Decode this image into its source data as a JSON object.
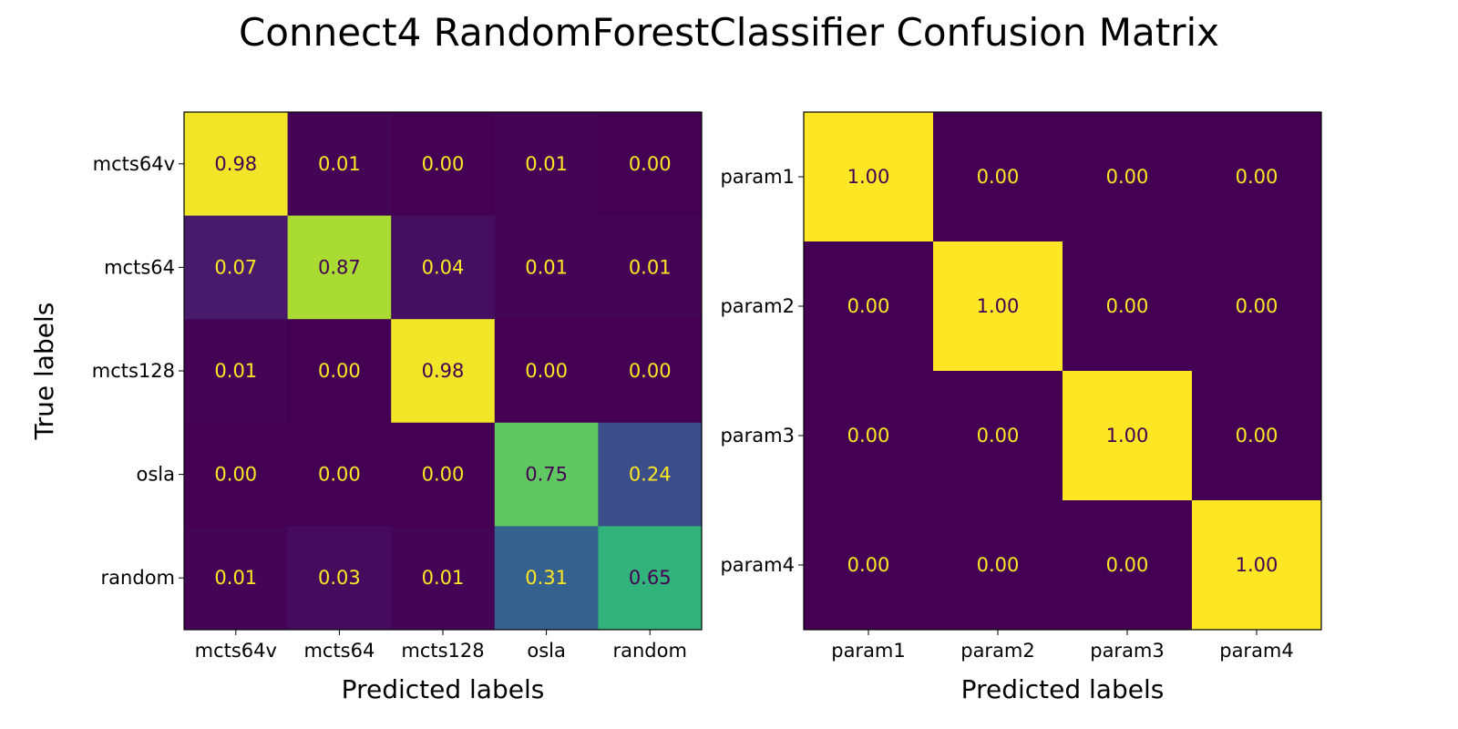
{
  "figure": {
    "title": "Connect4 RandomForestClassifier Confusion Matrix",
    "ylabel": "True labels"
  },
  "chart_data": [
    {
      "type": "heatmap",
      "title": "",
      "xlabel": "Predicted labels",
      "ylabel": "True labels",
      "x_categories": [
        "mcts64v",
        "mcts64",
        "mcts128",
        "osla",
        "random"
      ],
      "y_categories": [
        "mcts64v",
        "mcts64",
        "mcts128",
        "osla",
        "random"
      ],
      "values": [
        [
          0.98,
          0.01,
          0.0,
          0.01,
          0.0
        ],
        [
          0.07,
          0.87,
          0.04,
          0.01,
          0.01
        ],
        [
          0.01,
          0.0,
          0.98,
          0.0,
          0.0
        ],
        [
          0.0,
          0.0,
          0.0,
          0.75,
          0.24
        ],
        [
          0.01,
          0.03,
          0.01,
          0.31,
          0.65
        ]
      ],
      "colormap": "viridis",
      "value_range": [
        0,
        1
      ],
      "number_format": "2 decimals"
    },
    {
      "type": "heatmap",
      "title": "",
      "xlabel": "Predicted labels",
      "ylabel": "",
      "x_categories": [
        "param1",
        "param2",
        "param3",
        "param4"
      ],
      "y_categories": [
        "param1",
        "param2",
        "param3",
        "param4"
      ],
      "values": [
        [
          1.0,
          0.0,
          0.0,
          0.0
        ],
        [
          0.0,
          1.0,
          0.0,
          0.0
        ],
        [
          0.0,
          0.0,
          1.0,
          0.0
        ],
        [
          0.0,
          0.0,
          0.0,
          1.0
        ]
      ],
      "colormap": "viridis",
      "value_range": [
        0,
        1
      ],
      "number_format": "2 decimals"
    }
  ],
  "colors": {
    "viridis_stops": [
      "#440154",
      "#482878",
      "#3e4989",
      "#31688e",
      "#26828e",
      "#1f9e89",
      "#35b779",
      "#6ece58",
      "#b5de2b",
      "#fde725"
    ],
    "text_on_dark": "#fde725",
    "text_on_light": "#440154",
    "frame": "#000000"
  }
}
